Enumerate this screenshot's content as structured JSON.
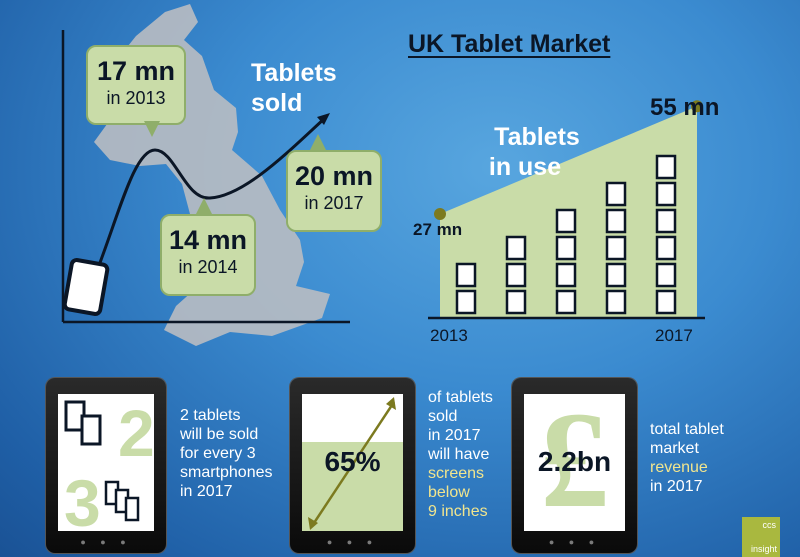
{
  "title": "UK Tablet Market",
  "tablets_sold": {
    "label": "Tablets sold",
    "label_line1": "Tablets",
    "label_line2": "sold",
    "callouts": [
      {
        "value": "17 mn",
        "year": "in 2013"
      },
      {
        "value": "14 mn",
        "year": "in 2014"
      },
      {
        "value": "20 mn",
        "year": "in 2017"
      }
    ]
  },
  "tablets_in_use": {
    "label_line1": "Tablets",
    "label_line2": "in use",
    "start_label": "27 mn",
    "end_label": "55 mn",
    "x_start": "2013",
    "x_end": "2017"
  },
  "chart_data": [
    {
      "type": "line",
      "title": "Tablets sold",
      "x": [
        "2013",
        "2014",
        "2017"
      ],
      "series": [
        {
          "values": [
            17,
            14,
            20
          ]
        }
      ],
      "unit": "mn"
    },
    {
      "type": "area",
      "title": "Tablets in use",
      "x": [
        "2013",
        "2017"
      ],
      "series": [
        {
          "values": [
            27,
            55
          ]
        }
      ],
      "unit": "mn",
      "icon_stacks": [
        2,
        3,
        4,
        5,
        6
      ]
    }
  ],
  "facts": [
    {
      "lines": [
        "2 tablets",
        "will be sold",
        "for every 3",
        "smartphones",
        "in 2017"
      ],
      "figure_digits": [
        "2",
        "3"
      ]
    },
    {
      "value": "65%",
      "lines_white": [
        "of tablets",
        "sold",
        "in 2017",
        "will have"
      ],
      "lines_highlight": [
        "screens",
        "below",
        "9 inches"
      ],
      "fill_fraction": 0.65
    },
    {
      "value": "2.2bn",
      "symbol": "£",
      "lines_white": [
        "total tablet",
        "market"
      ],
      "lines_highlight": [
        "revenue"
      ],
      "lines_after": [
        "in 2017"
      ]
    }
  ],
  "logo": {
    "top": "ccs",
    "bottom": "insight"
  },
  "colors": {
    "green_light": "#c9dca8",
    "green_dark": "#8fae6a",
    "olive": "#7c7a1f",
    "highlight_text": "#f1e58e",
    "background": "#3b8bd0"
  }
}
